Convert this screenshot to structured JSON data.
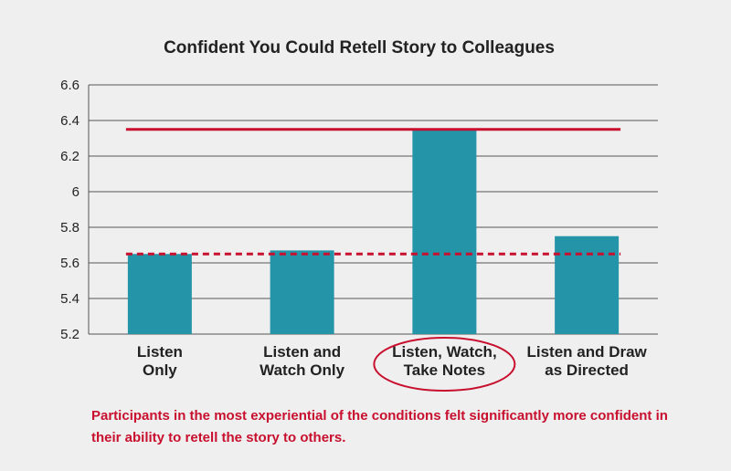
{
  "chart_data": {
    "type": "bar",
    "title": "Confident You Could Retell Story to Colleagues",
    "categories": [
      [
        "Listen",
        "Only"
      ],
      [
        "Listen and",
        "Watch Only"
      ],
      [
        "Listen, Watch,",
        "Take Notes"
      ],
      [
        "Listen and Draw",
        "as Directed"
      ]
    ],
    "values": [
      5.65,
      5.67,
      6.35,
      5.75
    ],
    "highlighted_category_index": 2,
    "ylim": [
      5.2,
      6.6
    ],
    "yticks": [
      "5.2",
      "5.4",
      "5.6",
      "5.8",
      "6",
      "6.2",
      "6.4",
      "6.6"
    ],
    "reference_lines": [
      {
        "value": 6.35,
        "style": "solid"
      },
      {
        "value": 5.65,
        "style": "dashed"
      }
    ],
    "grid": true,
    "xlabel": "",
    "ylabel": ""
  },
  "colors": {
    "bar": "#2494a8",
    "reference": "#c8102e",
    "grid": "#555555",
    "axis_text": "#222222",
    "background": "#efefef"
  },
  "caption": "Participants in the most experiential of the conditions felt significantly more confident in their ability to retell the story to others."
}
